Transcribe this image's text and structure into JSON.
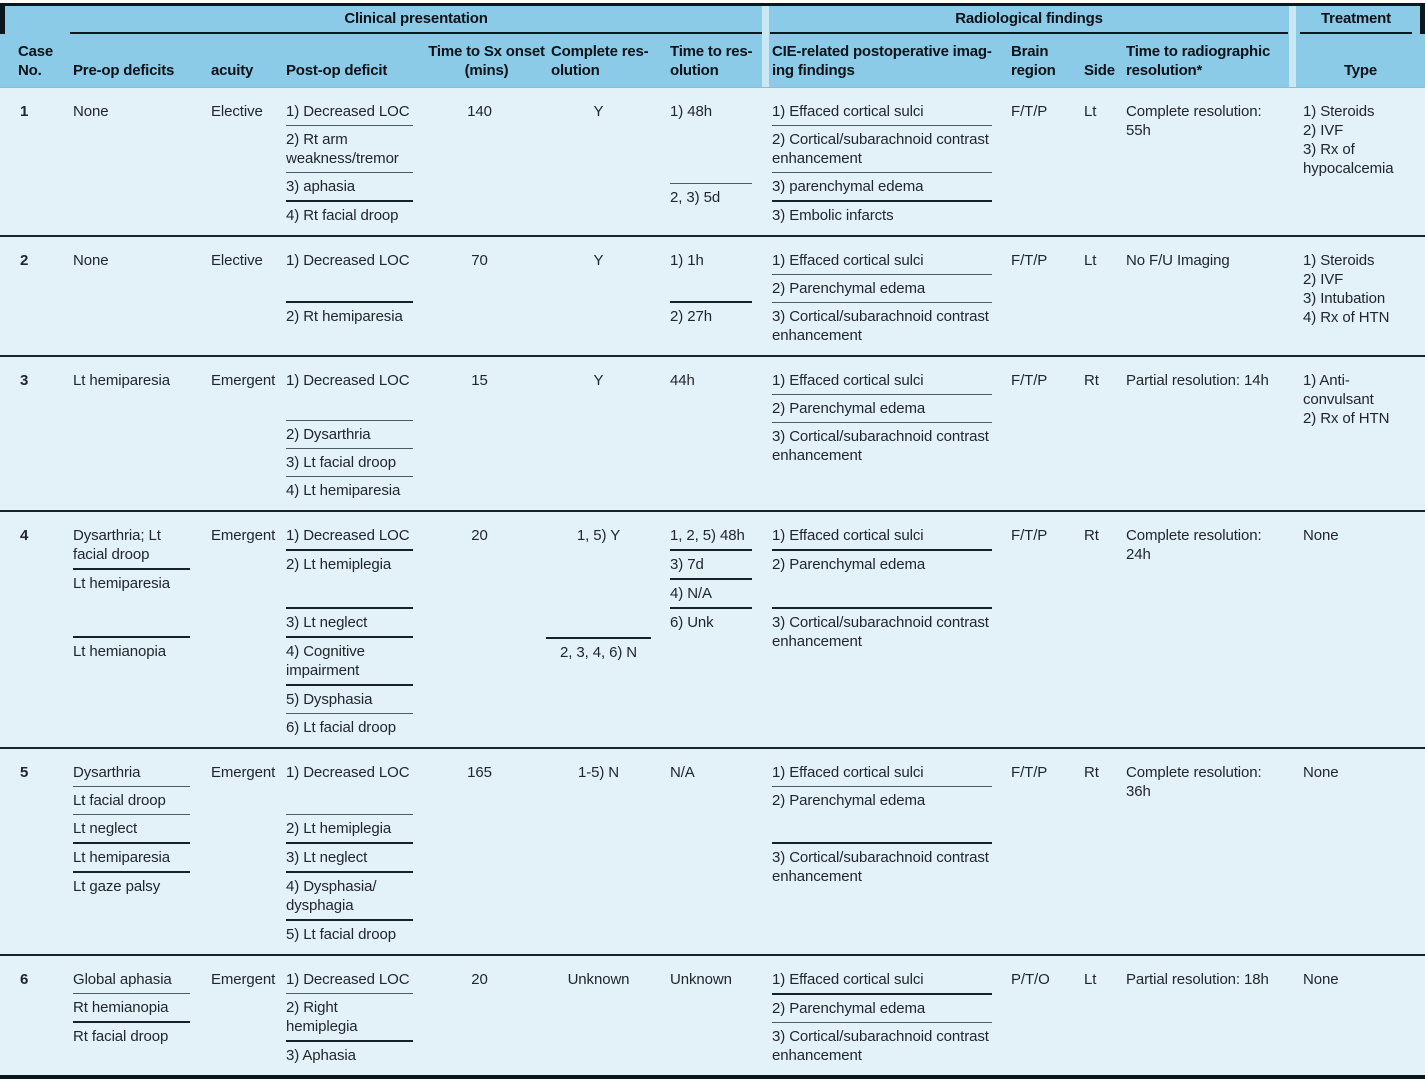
{
  "colors": {
    "header_bg": "#8bcbe7",
    "row_bg": "#e3f1f9",
    "rule_dark": "#0c161f",
    "separator_thin": "#4d5a64",
    "text": "#21262c"
  },
  "table": {
    "groups": [
      {
        "label": "Clinical presentation"
      },
      {
        "label": "Radiological findings"
      },
      {
        "label": "Treatment"
      }
    ],
    "columns": [
      {
        "label": "Case\nNo."
      },
      {
        "label": "Pre-op deficits"
      },
      {
        "label": "acuity"
      },
      {
        "label": "Post-op deficit"
      },
      {
        "label": "Time to Sx onset\n(mins)"
      },
      {
        "label": "Complete res-\nolution"
      },
      {
        "label": "Time to res-\nolution"
      },
      {
        "label": "CIE-related postoperative imag-\ning findings"
      },
      {
        "label": "Brain\nregion"
      },
      {
        "label": "Side"
      },
      {
        "label": "Time to radiographic\nresolution*"
      },
      {
        "label": "Type"
      }
    ],
    "rows": [
      {
        "case": "1",
        "preop": [
          {
            "t": "None"
          }
        ],
        "acuity": "Elective",
        "postop": [
          {
            "t": "1) Decreased LOC"
          },
          {
            "t": "2) Rt arm weakness/tremor",
            "sep": "thin"
          },
          {
            "t": "3) aphasia",
            "sep": "thin"
          },
          {
            "t": "4) Rt facial droop",
            "sep": "thick"
          }
        ],
        "time_sx": "140",
        "complete": [
          {
            "t": "Y"
          }
        ],
        "time_res": [
          {
            "t": "1) 48h"
          },
          {
            "t": "2, 3) 5d",
            "sep": "thin",
            "mt": 58
          }
        ],
        "cie": [
          {
            "t": "1) Effaced cortical sulci"
          },
          {
            "t": "2) Cortical/subarachnoid contrast enhancement",
            "sep": "thin"
          },
          {
            "t": "3) parenchymal edema",
            "sep": "thin"
          },
          {
            "t": "3) Embolic infarcts",
            "sep": "thick"
          }
        ],
        "brain": "F/T/P",
        "side": "Lt",
        "radio": "Complete resolution:\n55h",
        "type": "1) Steroids\n2) IVF\n3) Rx of\nhypocalcemia"
      },
      {
        "case": "2",
        "preop": [
          {
            "t": "None"
          }
        ],
        "acuity": "Elective",
        "postop": [
          {
            "t": "1) Decreased LOC"
          },
          {
            "t": "2) Rt hemiparesia",
            "sep": "thick",
            "mt": 27
          }
        ],
        "time_sx": "70",
        "complete": [
          {
            "t": "Y"
          }
        ],
        "time_res": [
          {
            "t": "1) 1h"
          },
          {
            "t": "2) 27h",
            "sep": "thick",
            "mt": 27
          }
        ],
        "cie": [
          {
            "t": "1) Effaced cortical sulci"
          },
          {
            "t": "2) Parenchymal edema",
            "sep": "thin"
          },
          {
            "t": "3) Cortical/subarachnoid contrast enhancement",
            "sep": "thin"
          }
        ],
        "brain": "F/T/P",
        "side": "Lt",
        "radio": "No F/U Imaging",
        "type": "1) Steroids\n2) IVF\n3) Intubation\n4) Rx of HTN"
      },
      {
        "case": "3",
        "preop": [
          {
            "t": "Lt hemiparesia"
          }
        ],
        "acuity": "Emergent",
        "postop": [
          {
            "t": "1) Decreased LOC"
          },
          {
            "t": "2) Dysarthria",
            "sep": "thin",
            "mt": 26
          },
          {
            "t": "3) Lt facial droop",
            "sep": "thin"
          },
          {
            "t": "4) Lt hemiparesia",
            "sep": "thin"
          }
        ],
        "time_sx": "15",
        "complete": [
          {
            "t": "Y"
          }
        ],
        "time_res": [
          {
            "t": "44h"
          }
        ],
        "cie": [
          {
            "t": "1) Effaced cortical sulci"
          },
          {
            "t": "2) Parenchymal edema",
            "sep": "thin"
          },
          {
            "t": "3) Cortical/subarachnoid contrast enhancement",
            "sep": "thin"
          }
        ],
        "brain": "F/T/P",
        "side": "Rt",
        "radio": "Partial resolution: 14h",
        "type": "1) Anti-\nconvulsant\n2) Rx of HTN"
      },
      {
        "case": "4",
        "preop": [
          {
            "t": "Dysarthria; Lt facial droop"
          },
          {
            "t": "Lt hemiparesia",
            "sep": "thick"
          },
          {
            "t": "Lt hemianopia",
            "sep": "thick",
            "mt": 39
          }
        ],
        "acuity": "Emergent",
        "postop": [
          {
            "t": "1) Decreased LOC"
          },
          {
            "t": "2) Lt hemiplegia",
            "sep": "thick"
          },
          {
            "t": "3) Lt neglect",
            "sep": "thick",
            "mt": 29
          },
          {
            "t": "4) Cognitive impairment",
            "sep": "thick"
          },
          {
            "t": "5) Dysphasia",
            "sep": "thick"
          },
          {
            "t": "6) Lt facial droop",
            "sep": "thin"
          }
        ],
        "time_sx": "20",
        "complete": [
          {
            "t": "1, 5) Y"
          },
          {
            "t": "2, 3, 4, 6) N",
            "sep": "thick",
            "mt": 88
          }
        ],
        "time_res": [
          {
            "t": "1, 2, 5) 48h"
          },
          {
            "t": "3) 7d",
            "sep": "thick"
          },
          {
            "t": "4) N/A",
            "sep": "thick"
          },
          {
            "t": "6) Unk",
            "sep": "thick"
          }
        ],
        "cie": [
          {
            "t": "1) Effaced cortical sulci"
          },
          {
            "t": "2) Parenchymal edema",
            "sep": "thick"
          },
          {
            "t": "3) Cortical/subarachnoid contrast enhancement",
            "sep": "thick",
            "mt": 29
          }
        ],
        "brain": "F/T/P",
        "side": "Rt",
        "radio": "Complete resolution:\n24h",
        "type": "None"
      },
      {
        "case": "5",
        "preop": [
          {
            "t": "Dysarthria"
          },
          {
            "t": "Lt facial droop",
            "sep": "thin"
          },
          {
            "t": "Lt neglect",
            "sep": "thin"
          },
          {
            "t": "Lt hemiparesia",
            "sep": "thick"
          },
          {
            "t": "Lt gaze palsy",
            "sep": "thick"
          }
        ],
        "acuity": "Emergent",
        "postop": [
          {
            "t": "1) Decreased LOC"
          },
          {
            "t": "2) Lt hemiplegia",
            "sep": "thin",
            "mt": 28
          },
          {
            "t": "3) Lt neglect",
            "sep": "thick"
          },
          {
            "t": "4) Dysphasia/\ndysphagia",
            "sep": "thick"
          },
          {
            "t": "5) Lt facial droop",
            "sep": "thick"
          }
        ],
        "time_sx": "165",
        "complete": [
          {
            "t": "1-5) N"
          }
        ],
        "time_res": [
          {
            "t": "N/A"
          }
        ],
        "cie": [
          {
            "t": "1) Effaced cortical sulci"
          },
          {
            "t": "2) Parenchymal edema",
            "sep": "thin"
          },
          {
            "t": "3) Cortical/subarachnoid contrast enhancement",
            "sep": "thick",
            "mt": 28
          }
        ],
        "brain": "F/T/P",
        "side": "Rt",
        "radio": "Complete resolution:\n36h",
        "type": "None"
      },
      {
        "case": "6",
        "preop": [
          {
            "t": "Global aphasia"
          },
          {
            "t": "Rt hemianopia",
            "sep": "thin"
          },
          {
            "t": "Rt facial droop",
            "sep": "thick"
          }
        ],
        "acuity": "Emergent",
        "postop": [
          {
            "t": "1) Decreased LOC"
          },
          {
            "t": "2) Right hemiplegia",
            "sep": "thin"
          },
          {
            "t": "3) Aphasia",
            "sep": "thick"
          }
        ],
        "time_sx": "20",
        "complete": [
          {
            "t": "Unknown"
          }
        ],
        "time_res": [
          {
            "t": "Unknown"
          }
        ],
        "cie": [
          {
            "t": "1) Effaced cortical sulci"
          },
          {
            "t": "2) Parenchymal edema",
            "sep": "thick"
          },
          {
            "t": "3) Cortical/subarachnoid contrast enhancement",
            "sep": "thin"
          }
        ],
        "brain": "P/T/O",
        "side": "Lt",
        "radio": "Partial resolution: 18h",
        "type": "None"
      }
    ]
  }
}
